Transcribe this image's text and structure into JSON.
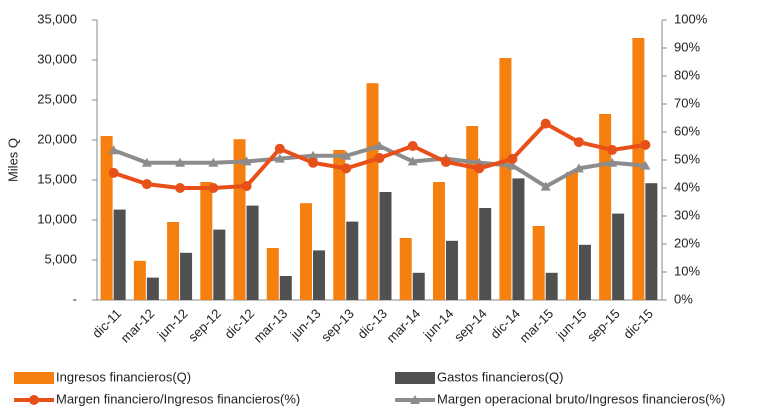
{
  "chart_data": {
    "type": "bar_line",
    "y_label": "Miles Q",
    "categories": [
      "dic-11",
      "mar-12",
      "jun-12",
      "sep-12",
      "dic-12",
      "mar-13",
      "jun-13",
      "sep-13",
      "dic-13",
      "mar-14",
      "jun-14",
      "sep-14",
      "dic-14",
      "mar-15",
      "jun-15",
      "sep-15",
      "dic-15"
    ],
    "series": [
      {
        "name": "Ingresos financieros(Q)",
        "type": "bar",
        "color": "#f57f0f",
        "values": [
          20500,
          4900,
          9750,
          14750,
          20100,
          6500,
          12100,
          18750,
          27100,
          7750,
          14750,
          21750,
          30250,
          9250,
          16000,
          23250,
          32750
        ]
      },
      {
        "name": "Gastos financieros(Q)",
        "type": "bar",
        "color": "#505050",
        "values": [
          11300,
          2800,
          5900,
          8800,
          11800,
          3000,
          6200,
          9800,
          13500,
          3400,
          7400,
          11500,
          15200,
          3400,
          6900,
          10800,
          14600
        ]
      },
      {
        "name": "Margen financiero/Ingresos financieros(%)",
        "type": "line",
        "axis": "y2",
        "marker": "circle",
        "color": "#e8501a",
        "values": [
          45.4,
          41.4,
          40,
          40,
          40.7,
          54,
          49,
          47,
          50.7,
          55,
          49.3,
          47,
          50.4,
          63,
          56.4,
          53.6,
          55.4
        ]
      },
      {
        "name": "Margen operacional bruto/Ingresos financieros(%)",
        "type": "line",
        "axis": "y2",
        "marker": "triangle",
        "color": "#8c8c8c",
        "values": [
          53.5,
          49,
          49,
          49,
          49.5,
          50.5,
          51.5,
          51.5,
          55,
          49.5,
          50.5,
          49,
          48,
          40.5,
          47,
          49,
          48
        ]
      }
    ],
    "ylim": [
      0,
      35000
    ],
    "yticks": [
      {
        "value": 0,
        "label": "-"
      },
      {
        "value": 5000,
        "label": "5,000"
      },
      {
        "value": 10000,
        "label": "10,000"
      },
      {
        "value": 15000,
        "label": "15,000"
      },
      {
        "value": 20000,
        "label": "20,000"
      },
      {
        "value": 25000,
        "label": "25,000"
      },
      {
        "value": 30000,
        "label": "30,000"
      },
      {
        "value": 35000,
        "label": "35,000"
      }
    ],
    "y2lim": [
      0,
      100
    ],
    "y2ticks": [
      {
        "value": 0,
        "label": "0%"
      },
      {
        "value": 10,
        "label": "10%"
      },
      {
        "value": 20,
        "label": "20%"
      },
      {
        "value": 30,
        "label": "30%"
      },
      {
        "value": 40,
        "label": "40%"
      },
      {
        "value": 50,
        "label": "50%"
      },
      {
        "value": 60,
        "label": "60%"
      },
      {
        "value": 70,
        "label": "70%"
      },
      {
        "value": 80,
        "label": "80%"
      },
      {
        "value": 90,
        "label": "90%"
      },
      {
        "value": 100,
        "label": "100%"
      }
    ]
  }
}
